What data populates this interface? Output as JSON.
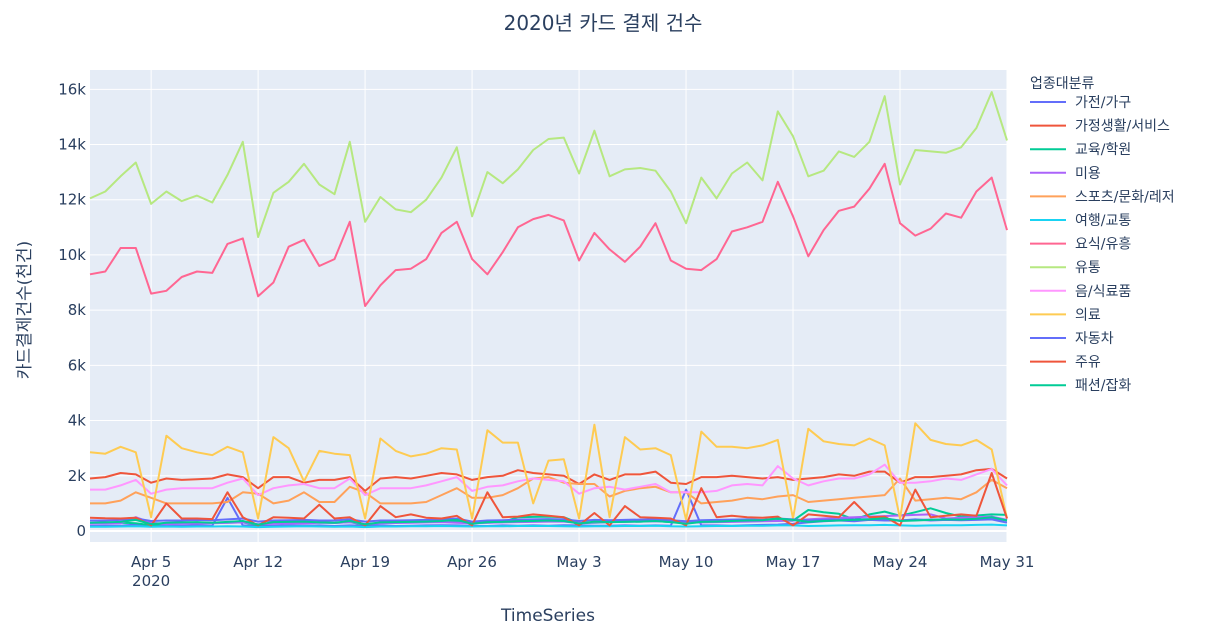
{
  "chart_data": {
    "type": "line",
    "title": "2020년 카드 결제 건수",
    "xlabel": "TimeSeries",
    "ylabel": "카드결제건수(천건)",
    "legend_title": "업종대분류",
    "legend_position": "right",
    "grid": true,
    "start_date": "2020-04-01",
    "x_ticks": [
      {
        "date": "2020-04-05",
        "label": "Apr 5",
        "sublabel": "2020"
      },
      {
        "date": "2020-04-12",
        "label": "Apr 12",
        "sublabel": ""
      },
      {
        "date": "2020-04-19",
        "label": "Apr 19",
        "sublabel": ""
      },
      {
        "date": "2020-04-26",
        "label": "Apr 26",
        "sublabel": ""
      },
      {
        "date": "2020-05-03",
        "label": "May 3",
        "sublabel": ""
      },
      {
        "date": "2020-05-10",
        "label": "May 10",
        "sublabel": ""
      },
      {
        "date": "2020-05-17",
        "label": "May 17",
        "sublabel": ""
      },
      {
        "date": "2020-05-24",
        "label": "May 24",
        "sublabel": ""
      },
      {
        "date": "2020-05-31",
        "label": "May 31",
        "sublabel": ""
      }
    ],
    "xlim": [
      "2020-04-01",
      "2020-05-31"
    ],
    "y_ticks": [
      {
        "value": 0,
        "label": "0"
      },
      {
        "value": 2000,
        "label": "2k"
      },
      {
        "value": 4000,
        "label": "4k"
      },
      {
        "value": 6000,
        "label": "6k"
      },
      {
        "value": 8000,
        "label": "8k"
      },
      {
        "value": 10000,
        "label": "10k"
      },
      {
        "value": 12000,
        "label": "12k"
      },
      {
        "value": 14000,
        "label": "14k"
      },
      {
        "value": 16000,
        "label": "16k"
      }
    ],
    "ylim": [
      -400,
      16700
    ],
    "series": [
      {
        "name": "가전/가구",
        "color": "#636efa",
        "values": [
          180,
          190,
          190,
          230,
          170,
          200,
          190,
          200,
          190,
          1200,
          200,
          180,
          190,
          200,
          190,
          200,
          180,
          200,
          190,
          200,
          180,
          190,
          200,
          210,
          200,
          190,
          180,
          200,
          190,
          200,
          190,
          210,
          200,
          190,
          190,
          200,
          190,
          200,
          190,
          1500,
          200,
          200,
          190,
          210,
          220,
          230,
          260,
          310,
          350,
          380,
          350,
          400,
          380,
          380,
          420,
          380,
          400,
          390,
          400,
          420,
          300
        ]
      },
      {
        "name": "가정생활/서비스",
        "color": "#EF553B",
        "values": [
          1900,
          1950,
          2100,
          2050,
          1750,
          1900,
          1850,
          1870,
          1900,
          2050,
          1950,
          1550,
          1950,
          1950,
          1750,
          1850,
          1850,
          1950,
          1450,
          1900,
          1950,
          1900,
          2000,
          2100,
          2050,
          1850,
          1950,
          2000,
          2200,
          2100,
          2050,
          2000,
          1700,
          2050,
          1850,
          2050,
          2050,
          2150,
          1750,
          1700,
          1950,
          1950,
          2000,
          1950,
          1900,
          1950,
          1850,
          1900,
          1950,
          2050,
          2000,
          2150,
          2150,
          1750,
          1950,
          1950,
          2000,
          2050,
          2200,
          2250,
          1900
        ]
      },
      {
        "name": "교육/학원",
        "color": "#00cc96",
        "values": [
          280,
          290,
          300,
          280,
          210,
          280,
          300,
          310,
          290,
          300,
          310,
          210,
          300,
          310,
          300,
          320,
          290,
          320,
          220,
          300,
          310,
          320,
          330,
          340,
          330,
          290,
          300,
          320,
          500,
          510,
          520,
          500,
          280,
          300,
          320,
          350,
          340,
          360,
          320,
          300,
          320,
          330,
          340,
          350,
          360,
          380,
          370,
          760,
          680,
          620,
          420,
          600,
          700,
          550,
          680,
          820,
          650,
          520,
          560,
          600,
          580
        ]
      },
      {
        "name": "미용",
        "color": "#ab63fa",
        "values": [
          260,
          270,
          280,
          500,
          300,
          250,
          260,
          270,
          280,
          300,
          310,
          240,
          260,
          280,
          270,
          300,
          290,
          320,
          250,
          280,
          290,
          300,
          310,
          320,
          300,
          280,
          300,
          310,
          320,
          330,
          340,
          340,
          290,
          310,
          320,
          330,
          340,
          350,
          340,
          290,
          310,
          320,
          330,
          340,
          350,
          360,
          380,
          420,
          450,
          480,
          500,
          520,
          540,
          560,
          580,
          600,
          450,
          480,
          500,
          520,
          400
        ]
      },
      {
        "name": "스포츠/문화/레저",
        "color": "#FFA15A",
        "values": [
          1000,
          1000,
          1100,
          1400,
          1200,
          1000,
          1000,
          1000,
          1000,
          1050,
          1400,
          1350,
          1000,
          1100,
          1400,
          1050,
          1050,
          1600,
          1400,
          1000,
          1000,
          1000,
          1050,
          1300,
          1550,
          1200,
          1200,
          1300,
          1550,
          1900,
          1950,
          1750,
          1700,
          1700,
          1250,
          1450,
          1550,
          1600,
          1400,
          1400,
          1000,
          1050,
          1100,
          1200,
          1150,
          1250,
          1300,
          1050,
          1100,
          1150,
          1200,
          1250,
          1300,
          1900,
          1100,
          1150,
          1200,
          1150,
          1400,
          1850,
          1550
        ]
      },
      {
        "name": "여행/교통",
        "color": "#19d3f3",
        "values": [
          150,
          150,
          160,
          170,
          150,
          160,
          150,
          160,
          160,
          170,
          160,
          140,
          150,
          160,
          170,
          160,
          150,
          160,
          140,
          160,
          160,
          170,
          170,
          180,
          170,
          160,
          170,
          170,
          180,
          180,
          180,
          170,
          160,
          170,
          170,
          180,
          180,
          190,
          170,
          160,
          170,
          180,
          180,
          190,
          190,
          200,
          200,
          180,
          190,
          200,
          210,
          210,
          220,
          200,
          190,
          200,
          210,
          210,
          220,
          230,
          200
        ]
      },
      {
        "name": "요식/유흥",
        "color": "#FF6692",
        "values": [
          9300,
          9400,
          10250,
          10250,
          8600,
          8700,
          9200,
          9400,
          9350,
          10400,
          10600,
          8500,
          9000,
          10300,
          10550,
          9600,
          9850,
          11200,
          8150,
          8900,
          9450,
          9500,
          9850,
          10800,
          11200,
          9850,
          9300,
          10100,
          11000,
          11300,
          11450,
          11250,
          9800,
          10800,
          10200,
          9750,
          10300,
          11150,
          9800,
          9500,
          9450,
          9850,
          10850,
          11000,
          11200,
          12650,
          11400,
          9950,
          10900,
          11600,
          11750,
          12400,
          13300,
          11150,
          10700,
          10950,
          11500,
          11350,
          12300,
          12800,
          10900
        ]
      },
      {
        "name": "유통",
        "color": "#B6E880",
        "values": [
          12050,
          12300,
          12850,
          13350,
          11850,
          12300,
          11950,
          12150,
          11900,
          12900,
          14100,
          10650,
          12250,
          12650,
          13300,
          12550,
          12200,
          14100,
          11200,
          12100,
          11650,
          11550,
          12000,
          12800,
          13900,
          11400,
          13000,
          12600,
          13100,
          13800,
          14200,
          14250,
          12950,
          14500,
          12850,
          13100,
          13150,
          13050,
          12300,
          11150,
          12800,
          12050,
          12950,
          13350,
          12700,
          15200,
          14300,
          12850,
          13050,
          13750,
          13550,
          14100,
          15750,
          12550,
          13800,
          13750,
          13700,
          13900,
          14600,
          15900,
          14150
        ]
      },
      {
        "name": "음/식료품",
        "color": "#FF97FF",
        "values": [
          1500,
          1500,
          1650,
          1850,
          1350,
          1500,
          1550,
          1550,
          1550,
          1750,
          1900,
          1300,
          1550,
          1650,
          1700,
          1550,
          1550,
          1900,
          1300,
          1550,
          1550,
          1550,
          1650,
          1800,
          1950,
          1450,
          1600,
          1650,
          1800,
          1900,
          1850,
          1800,
          1350,
          1550,
          1600,
          1500,
          1600,
          1700,
          1400,
          1400,
          1400,
          1450,
          1650,
          1700,
          1650,
          2350,
          1900,
          1650,
          1800,
          1900,
          1900,
          2050,
          2400,
          1750,
          1750,
          1800,
          1900,
          1850,
          2050,
          2250,
          1650
        ]
      },
      {
        "name": "의료",
        "color": "#FECB52",
        "values": [
          2850,
          2800,
          3050,
          2850,
          500,
          3450,
          3000,
          2850,
          2750,
          3050,
          2850,
          450,
          3400,
          3000,
          1800,
          2900,
          2800,
          2750,
          450,
          3350,
          2900,
          2700,
          2800,
          3000,
          2950,
          450,
          3650,
          3200,
          3200,
          1000,
          2550,
          2600,
          450,
          3850,
          500,
          3400,
          2950,
          3000,
          2750,
          400,
          3600,
          3050,
          3050,
          3000,
          3100,
          3300,
          450,
          3700,
          3250,
          3150,
          3100,
          3350,
          3100,
          450,
          3900,
          3300,
          3150,
          3100,
          3300,
          2950,
          450
        ]
      },
      {
        "name": "자동차",
        "color": "#636efa",
        "values": [
          380,
          380,
          400,
          450,
          360,
          380,
          380,
          400,
          390,
          420,
          450,
          340,
          380,
          390,
          400,
          380,
          380,
          420,
          340,
          380,
          380,
          390,
          400,
          420,
          450,
          340,
          380,
          390,
          410,
          420,
          430,
          420,
          360,
          400,
          390,
          400,
          410,
          420,
          390,
          350,
          390,
          400,
          410,
          420,
          400,
          450,
          420,
          380,
          400,
          410,
          420,
          430,
          450,
          380,
          400,
          410,
          420,
          410,
          430,
          450,
          380
        ]
      },
      {
        "name": "주유",
        "color": "#EF553B",
        "values": [
          480,
          460,
          450,
          480,
          200,
          1000,
          450,
          450,
          430,
          1400,
          500,
          200,
          500,
          480,
          450,
          950,
          450,
          500,
          200,
          900,
          500,
          600,
          480,
          450,
          550,
          200,
          1400,
          500,
          520,
          600,
          550,
          500,
          200,
          650,
          200,
          900,
          500,
          480,
          450,
          200,
          1550,
          500,
          550,
          500,
          480,
          520,
          200,
          600,
          550,
          500,
          1050,
          500,
          520,
          200,
          1500,
          500,
          550,
          600,
          550,
          2100,
          450
        ]
      },
      {
        "name": "패션/잡화",
        "color": "#00cc96",
        "values": [
          300,
          310,
          330,
          400,
          250,
          300,
          310,
          320,
          300,
          330,
          360,
          230,
          320,
          330,
          340,
          310,
          300,
          360,
          240,
          310,
          320,
          330,
          340,
          360,
          400,
          260,
          320,
          330,
          350,
          360,
          380,
          360,
          270,
          340,
          320,
          330,
          340,
          360,
          320,
          260,
          330,
          340,
          360,
          380,
          390,
          450,
          400,
          330,
          360,
          380,
          400,
          420,
          460,
          360,
          380,
          400,
          420,
          410,
          440,
          500,
          380
        ]
      }
    ]
  }
}
